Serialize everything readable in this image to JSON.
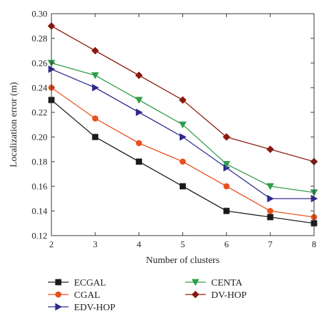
{
  "chart_data": {
    "type": "line",
    "title": "",
    "xlabel": "Number of clusters",
    "ylabel": "Localization error (m)",
    "x": [
      2,
      3,
      4,
      5,
      6,
      7,
      8
    ],
    "xlim": [
      2,
      8
    ],
    "ylim": [
      0.12,
      0.3
    ],
    "xticks": [
      "2",
      "3",
      "4",
      "5",
      "6",
      "7",
      "8"
    ],
    "yticks": [
      "0.12",
      "0.14",
      "0.16",
      "0.18",
      "0.20",
      "0.22",
      "0.24",
      "0.26",
      "0.28",
      "0.30"
    ],
    "grid": false,
    "legend_position": "below plot",
    "series": [
      {
        "name": "ECGAL",
        "values": [
          0.23,
          0.2,
          0.18,
          0.16,
          0.14,
          0.135,
          0.13
        ],
        "color": "#1a1a1a",
        "marker": "square"
      },
      {
        "name": "CGAL",
        "values": [
          0.24,
          0.215,
          0.195,
          0.18,
          0.16,
          0.14,
          0.135
        ],
        "color": "#e8501c",
        "marker": "circle"
      },
      {
        "name": "EDV-HOP",
        "values": [
          0.255,
          0.24,
          0.22,
          0.2,
          0.175,
          0.15,
          0.15
        ],
        "color": "#2f2a8f",
        "marker": "triangle-right"
      },
      {
        "name": "CENTA",
        "values": [
          0.26,
          0.25,
          0.23,
          0.21,
          0.178,
          0.16,
          0.155
        ],
        "color": "#2e9e4a",
        "marker": "triangle-down"
      },
      {
        "name": "DV-HOP",
        "values": [
          0.29,
          0.27,
          0.25,
          0.23,
          0.2,
          0.19,
          0.18
        ],
        "color": "#8b1a0e",
        "marker": "diamond"
      }
    ]
  }
}
